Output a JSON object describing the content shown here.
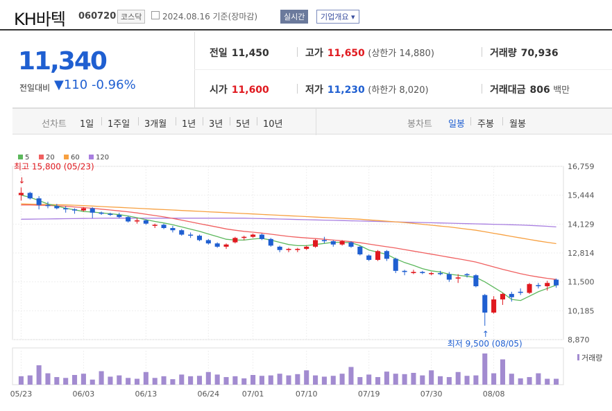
{
  "header": {
    "title": "KH바텍",
    "code": "060720",
    "market": "코스닥",
    "date": "2024.08.16 기준(장마감)",
    "realtime": "실시간",
    "company_info": "기업개요"
  },
  "quote": {
    "price": "11,340",
    "change_label": "전일대비",
    "change": "110",
    "change_pct": "-0.96%",
    "prev_label": "전일",
    "prev": "11,450",
    "high_label": "고가",
    "high": "11,650",
    "upper_limit": "(상한가 14,880)",
    "volume_label": "거래량",
    "volume": "70,936",
    "open_label": "시가",
    "open": "11,600",
    "low_label": "저가",
    "low": "11,230",
    "lower_limit": "(하한가 8,020)",
    "amount_label": "거래대금",
    "amount": "806",
    "amount_unit": "백만"
  },
  "tabs": {
    "line_label": "선차트",
    "periods": [
      "1일",
      "1주일",
      "3개월",
      "1년",
      "3년",
      "5년",
      "10년"
    ],
    "candle_label": "봉차트",
    "candles": [
      "일봉",
      "주봉",
      "월봉"
    ],
    "active_candle": "일봉"
  },
  "chart_data": {
    "type": "candlestick",
    "legend": [
      {
        "name": "5",
        "color": "#5cb85c"
      },
      {
        "name": "20",
        "color": "#f06060"
      },
      {
        "name": "60",
        "color": "#f7a040"
      },
      {
        "name": "120",
        "color": "#a87ee0"
      }
    ],
    "y_ticks": [
      "16,759",
      "15,444",
      "14,129",
      "12,814",
      "11,500",
      "10,185",
      "8,870"
    ],
    "ylim": [
      8870,
      16759
    ],
    "x_ticks": [
      "05/23",
      "06/03",
      "06/13",
      "06/24",
      "07/01",
      "07/10",
      "07/19",
      "07/30",
      "08/08"
    ],
    "high_label": "최고 15,800 (05/23)",
    "low_label": "최저 9,500 (08/05)",
    "volume_label": "거래량",
    "colors": {
      "up": "#e0191f",
      "down": "#1f5fd1",
      "volume": "#a28bd0"
    },
    "candles": [
      [
        15450,
        15800,
        15200,
        15550
      ],
      [
        15550,
        15600,
        15250,
        15300
      ],
      [
        15300,
        15400,
        14800,
        15000
      ],
      [
        15000,
        15150,
        14850,
        14950
      ],
      [
        14950,
        15050,
        14800,
        14850
      ],
      [
        14850,
        14950,
        14650,
        14800
      ],
      [
        14800,
        14850,
        14600,
        14750
      ],
      [
        14750,
        14900,
        14700,
        14850
      ],
      [
        14850,
        14900,
        14400,
        14650
      ],
      [
        14650,
        14700,
        14550,
        14600
      ],
      [
        14600,
        14650,
        14500,
        14550
      ],
      [
        14550,
        14650,
        14400,
        14450
      ],
      [
        14450,
        14500,
        14200,
        14250
      ],
      [
        14250,
        14400,
        14150,
        14300
      ],
      [
        14300,
        14350,
        14100,
        14150
      ],
      [
        14050,
        14150,
        13950,
        14100
      ],
      [
        14100,
        14150,
        13900,
        13950
      ],
      [
        13950,
        14050,
        13750,
        13850
      ],
      [
        13850,
        13900,
        13600,
        13650
      ],
      [
        13650,
        13750,
        13500,
        13600
      ],
      [
        13600,
        13650,
        13350,
        13400
      ],
      [
        13400,
        13450,
        13200,
        13250
      ],
      [
        13250,
        13300,
        13050,
        13100
      ],
      [
        13100,
        13250,
        13000,
        13200
      ],
      [
        13300,
        13550,
        13250,
        13500
      ],
      [
        13500,
        13600,
        13400,
        13550
      ],
      [
        13550,
        13700,
        13500,
        13650
      ],
      [
        13650,
        13700,
        13400,
        13450
      ],
      [
        13450,
        13500,
        13100,
        13150
      ],
      [
        13100,
        13150,
        12850,
        12950
      ],
      [
        12950,
        13050,
        12850,
        13000
      ],
      [
        12950,
        13050,
        12850,
        13000
      ],
      [
        13000,
        13150,
        12950,
        13100
      ],
      [
        13100,
        13450,
        13050,
        13400
      ],
      [
        13400,
        13550,
        13250,
        13350
      ],
      [
        13350,
        13400,
        13100,
        13200
      ],
      [
        13200,
        13400,
        13150,
        13350
      ],
      [
        13300,
        13350,
        13050,
        13100
      ],
      [
        13100,
        13150,
        12700,
        12750
      ],
      [
        12700,
        12750,
        12450,
        12500
      ],
      [
        12500,
        12950,
        12450,
        12900
      ],
      [
        12900,
        12950,
        12450,
        12550
      ],
      [
        12550,
        12600,
        11900,
        12000
      ],
      [
        12000,
        12050,
        11800,
        11950
      ],
      [
        11900,
        12050,
        11850,
        11950
      ],
      [
        11950,
        12000,
        11850,
        11900
      ],
      [
        11900,
        11950,
        11800,
        11900
      ],
      [
        11900,
        12000,
        11800,
        11850
      ],
      [
        11850,
        11950,
        11500,
        11600
      ],
      [
        11650,
        11850,
        11450,
        11700
      ],
      [
        11850,
        11900,
        11700,
        11800
      ],
      [
        11800,
        11850,
        11250,
        11300
      ],
      [
        10900,
        10950,
        9500,
        10100
      ],
      [
        10100,
        10850,
        10050,
        10700
      ],
      [
        10700,
        11000,
        10450,
        10950
      ],
      [
        10950,
        11050,
        10600,
        10800
      ],
      [
        11050,
        11200,
        10900,
        11000
      ],
      [
        11000,
        11450,
        10950,
        11400
      ],
      [
        11350,
        11450,
        11200,
        11300
      ],
      [
        11300,
        11550,
        11100,
        11450
      ],
      [
        11600,
        11650,
        11230,
        11340
      ]
    ],
    "volumes": [
      20,
      22,
      46,
      27,
      18,
      16,
      23,
      26,
      12,
      32,
      19,
      22,
      16,
      14,
      30,
      16,
      20,
      13,
      24,
      20,
      21,
      30,
      24,
      18,
      20,
      15,
      23,
      21,
      22,
      26,
      22,
      25,
      34,
      22,
      19,
      21,
      26,
      42,
      18,
      24,
      18,
      31,
      26,
      25,
      28,
      22,
      34,
      20,
      18,
      30,
      21,
      22,
      74,
      27,
      60,
      26,
      15,
      18,
      27,
      14,
      14
    ],
    "ma5": [
      15450,
      15350,
      15200,
      15050,
      14950,
      14850,
      14780,
      14700,
      14680,
      14640,
      14600,
      14560,
      14500,
      14420,
      14330,
      14250,
      14180,
      14100,
      14000,
      13900,
      13800,
      13680,
      13560,
      13440,
      13400,
      13400,
      13450,
      13480,
      13400,
      13300,
      13200,
      13150,
      13150,
      13200,
      13250,
      13300,
      13300,
      13280,
      13150,
      12950,
      12850,
      12750,
      12550,
      12380,
      12250,
      12100,
      12000,
      11950,
      11850,
      11800,
      11750,
      11700,
      11500,
      11250,
      11000,
      10700,
      10650,
      10850,
      11050,
      11200,
      11350
    ],
    "ma20": [
      15000,
      15000,
      14990,
      14980,
      14960,
      14940,
      14910,
      14880,
      14850,
      14810,
      14770,
      14730,
      14690,
      14640,
      14580,
      14520,
      14460,
      14390,
      14310,
      14230,
      14150,
      14070,
      13990,
      13910,
      13850,
      13800,
      13760,
      13720,
      13670,
      13620,
      13570,
      13530,
      13500,
      13470,
      13440,
      13400,
      13370,
      13330,
      13280,
      13220,
      13160,
      13100,
      13040,
      12970,
      12900,
      12830,
      12760,
      12690,
      12620,
      12550,
      12480,
      12400,
      12290,
      12180,
      12070,
      11970,
      11870,
      11790,
      11720,
      11660,
      11610
    ],
    "ma60": [
      15050,
      15040,
      15030,
      15020,
      15010,
      15000,
      14990,
      14970,
      14950,
      14930,
      14910,
      14890,
      14870,
      14850,
      14830,
      14810,
      14790,
      14770,
      14750,
      14730,
      14710,
      14690,
      14670,
      14650,
      14630,
      14610,
      14590,
      14570,
      14550,
      14530,
      14510,
      14490,
      14470,
      14450,
      14430,
      14410,
      14390,
      14370,
      14350,
      14320,
      14290,
      14260,
      14230,
      14200,
      14160,
      14120,
      14080,
      14040,
      14000,
      13950,
      13900,
      13850,
      13780,
      13710,
      13640,
      13570,
      13500,
      13430,
      13360,
      13300,
      13240
    ],
    "ma120": [
      14350,
      14355,
      14360,
      14365,
      14370,
      14375,
      14380,
      14385,
      14390,
      14395,
      14400,
      14400,
      14400,
      14400,
      14400,
      14400,
      14400,
      14400,
      14400,
      14400,
      14400,
      14400,
      14400,
      14400,
      14400,
      14400,
      14390,
      14380,
      14370,
      14360,
      14350,
      14340,
      14330,
      14320,
      14310,
      14300,
      14290,
      14280,
      14270,
      14260,
      14250,
      14240,
      14230,
      14220,
      14210,
      14200,
      14190,
      14180,
      14170,
      14160,
      14150,
      14140,
      14130,
      14120,
      14110,
      14100,
      14090,
      14070,
      14050,
      14030,
      14000
    ]
  }
}
